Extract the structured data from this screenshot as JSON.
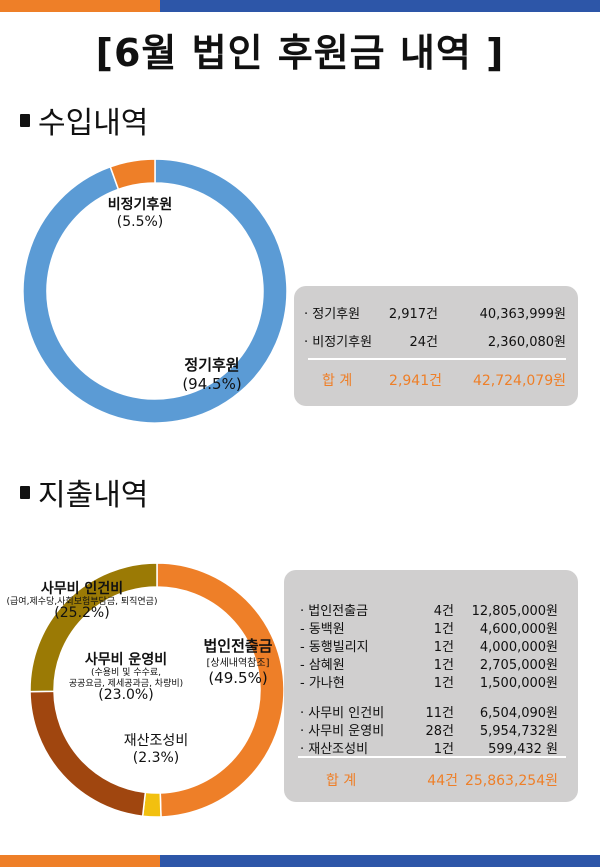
{
  "title": "[6월 법인 후원금 내역 ]",
  "income": {
    "heading": "수입내역",
    "rows": [
      {
        "label": "· 정기후원",
        "count": "2,917건",
        "amount": "40,363,999원"
      },
      {
        "label": "· 비정기후원",
        "count": "24건",
        "amount": "2,360,080원"
      }
    ],
    "total": {
      "label": "합   계",
      "count": "2,941건",
      "amount": "42,724,079원"
    }
  },
  "expense": {
    "heading": "지출내역",
    "rows": [
      {
        "label": "· 법인전출금",
        "count": "4건",
        "amount": "12,805,000원"
      },
      {
        "label": "-    동백원",
        "count": "1건",
        "amount": "4,600,000원"
      },
      {
        "label": "-    동행빌리지",
        "count": "1건",
        "amount": "4,000,000원"
      },
      {
        "label": "-    삼혜원",
        "count": "1건",
        "amount": "2,705,000원"
      },
      {
        "label": "-    가나현",
        "count": "1건",
        "amount": "1,500,000원"
      },
      {
        "label": "· 사무비 인건비",
        "count": "11건",
        "amount": "6,504,090원"
      },
      {
        "label": "· 사무비 운영비",
        "count": "28건",
        "amount": "5,954,732원"
      },
      {
        "label": "· 재산조성비",
        "count": "1건",
        "amount": "599,432 원"
      }
    ],
    "total": {
      "label": "합   계",
      "count": "44건",
      "amount": "25,863,254원"
    }
  },
  "chart_data": [
    {
      "type": "pie",
      "donut": true,
      "slices": [
        {
          "label": "정기후원",
          "pct_label": "(94.5%)",
          "value": 94.5,
          "color": "#5b9bd5"
        },
        {
          "label": "비정기후원",
          "pct_label": "(5.5%)",
          "value": 5.5,
          "color": "#ee7f28"
        }
      ]
    },
    {
      "type": "pie",
      "donut": true,
      "slices": [
        {
          "label": "법인전출금",
          "note": "[상세내역참조]",
          "pct_label": "(49.5%)",
          "value": 49.5,
          "color": "#ee7f28"
        },
        {
          "label": "재산조성비",
          "pct_label": "(2.3%)",
          "value": 2.3,
          "color": "#f2c00f"
        },
        {
          "label": "사무비 운영비",
          "note": "(수용비 및 수수료, 공공요금, 제세공과금, 차량비)",
          "pct_label": "(23.0%)",
          "value": 23.0,
          "color": "#a0460f"
        },
        {
          "label": "사무비 인건비",
          "note": "(급여,제수당,사회보험부담금, 퇴직연금)",
          "pct_label": "(25.2%)",
          "value": 25.2,
          "color": "#9b7a05"
        }
      ]
    }
  ]
}
